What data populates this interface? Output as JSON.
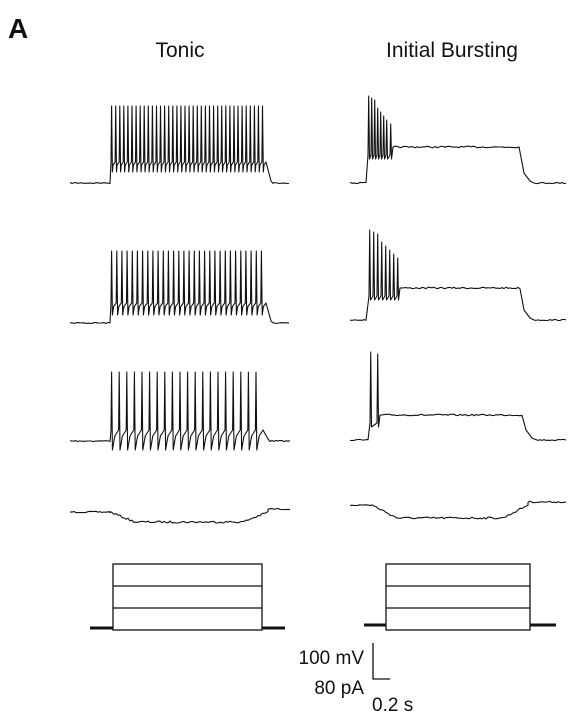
{
  "panel_label": "A",
  "columns": [
    "Tonic",
    "Initial Bursting"
  ],
  "scale_bar": {
    "voltage": "100 mV",
    "current": "80 pA",
    "time": "0.2 s"
  }
}
